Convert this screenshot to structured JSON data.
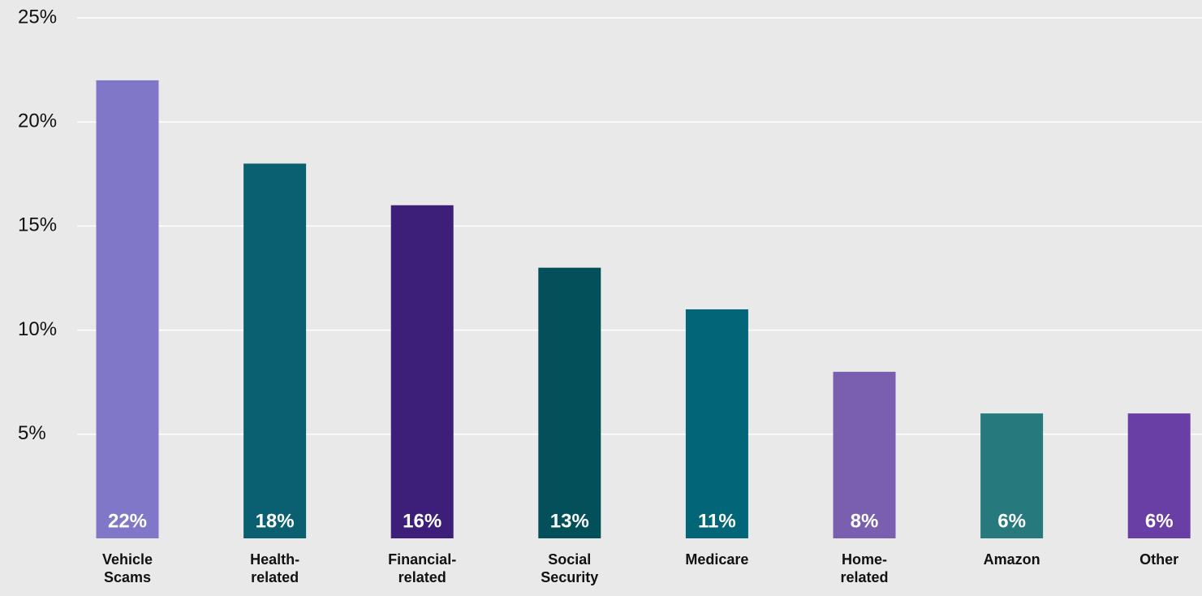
{
  "chart_data": {
    "type": "bar",
    "categories": [
      "Vehicle Scams",
      "Health-related",
      "Financial-related",
      "Social Security",
      "Medicare",
      "Home-related",
      "Amazon",
      "Other"
    ],
    "values": [
      22,
      18,
      16,
      13,
      11,
      8,
      6,
      6
    ],
    "value_labels": [
      "22%",
      "18%",
      "16%",
      "13%",
      "11%",
      "8%",
      "6%",
      "6%"
    ],
    "colors": [
      "#8077c8",
      "#0a6070",
      "#3d1f7a",
      "#03505a",
      "#036578",
      "#7a5fb0",
      "#267a7e",
      "#6a3fa5"
    ],
    "ylim": [
      0,
      25
    ],
    "yticks": [
      {
        "value": 5,
        "label": "5%"
      },
      {
        "value": 10,
        "label": "10%"
      },
      {
        "value": 15,
        "label": "15%"
      },
      {
        "value": 20,
        "label": "20%"
      },
      {
        "value": 25,
        "label": "25%"
      }
    ],
    "grid": true
  }
}
